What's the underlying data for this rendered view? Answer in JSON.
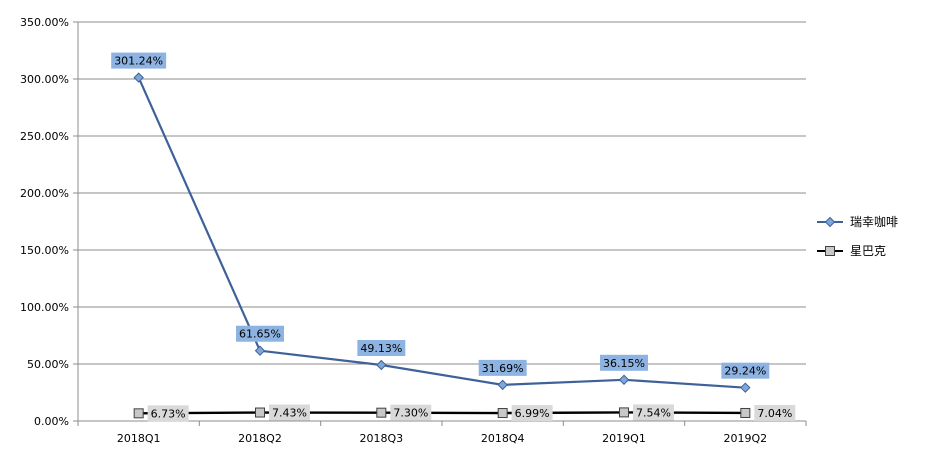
{
  "chart_data": {
    "type": "line",
    "title": "",
    "xlabel": "",
    "ylabel": "",
    "categories": [
      "2018Q1",
      "2018Q2",
      "2018Q3",
      "2018Q4",
      "2019Q1",
      "2019Q2"
    ],
    "ylim": [
      0,
      350
    ],
    "yticks": [
      0,
      50,
      100,
      150,
      200,
      250,
      300,
      350
    ],
    "ytick_labels": [
      "0.00%",
      "50.00%",
      "100.00%",
      "150.00%",
      "200.00%",
      "250.00%",
      "300.00%",
      "350.00%"
    ],
    "grid": true,
    "legend_position": "right",
    "series": [
      {
        "name": "瑞幸咖啡",
        "values": [
          301.24,
          61.65,
          49.13,
          31.69,
          36.15,
          29.24
        ],
        "labels": [
          "301.24%",
          "61.65%",
          "49.13%",
          "31.69%",
          "36.15%",
          "29.24%"
        ],
        "line_color": "#3F6199",
        "marker": "diamond",
        "marker_color": "#7FA6D9",
        "label_bg": "#8DB3E2"
      },
      {
        "name": "星巴克",
        "values": [
          6.73,
          7.43,
          7.3,
          6.99,
          7.54,
          7.04
        ],
        "labels": [
          "6.73%",
          "7.43%",
          "7.30%",
          "6.99%",
          "7.54%",
          "7.04%"
        ],
        "line_color": "#000000",
        "marker": "square",
        "marker_color": "#C8C8C8",
        "label_bg": "#D9D9D9"
      }
    ]
  }
}
